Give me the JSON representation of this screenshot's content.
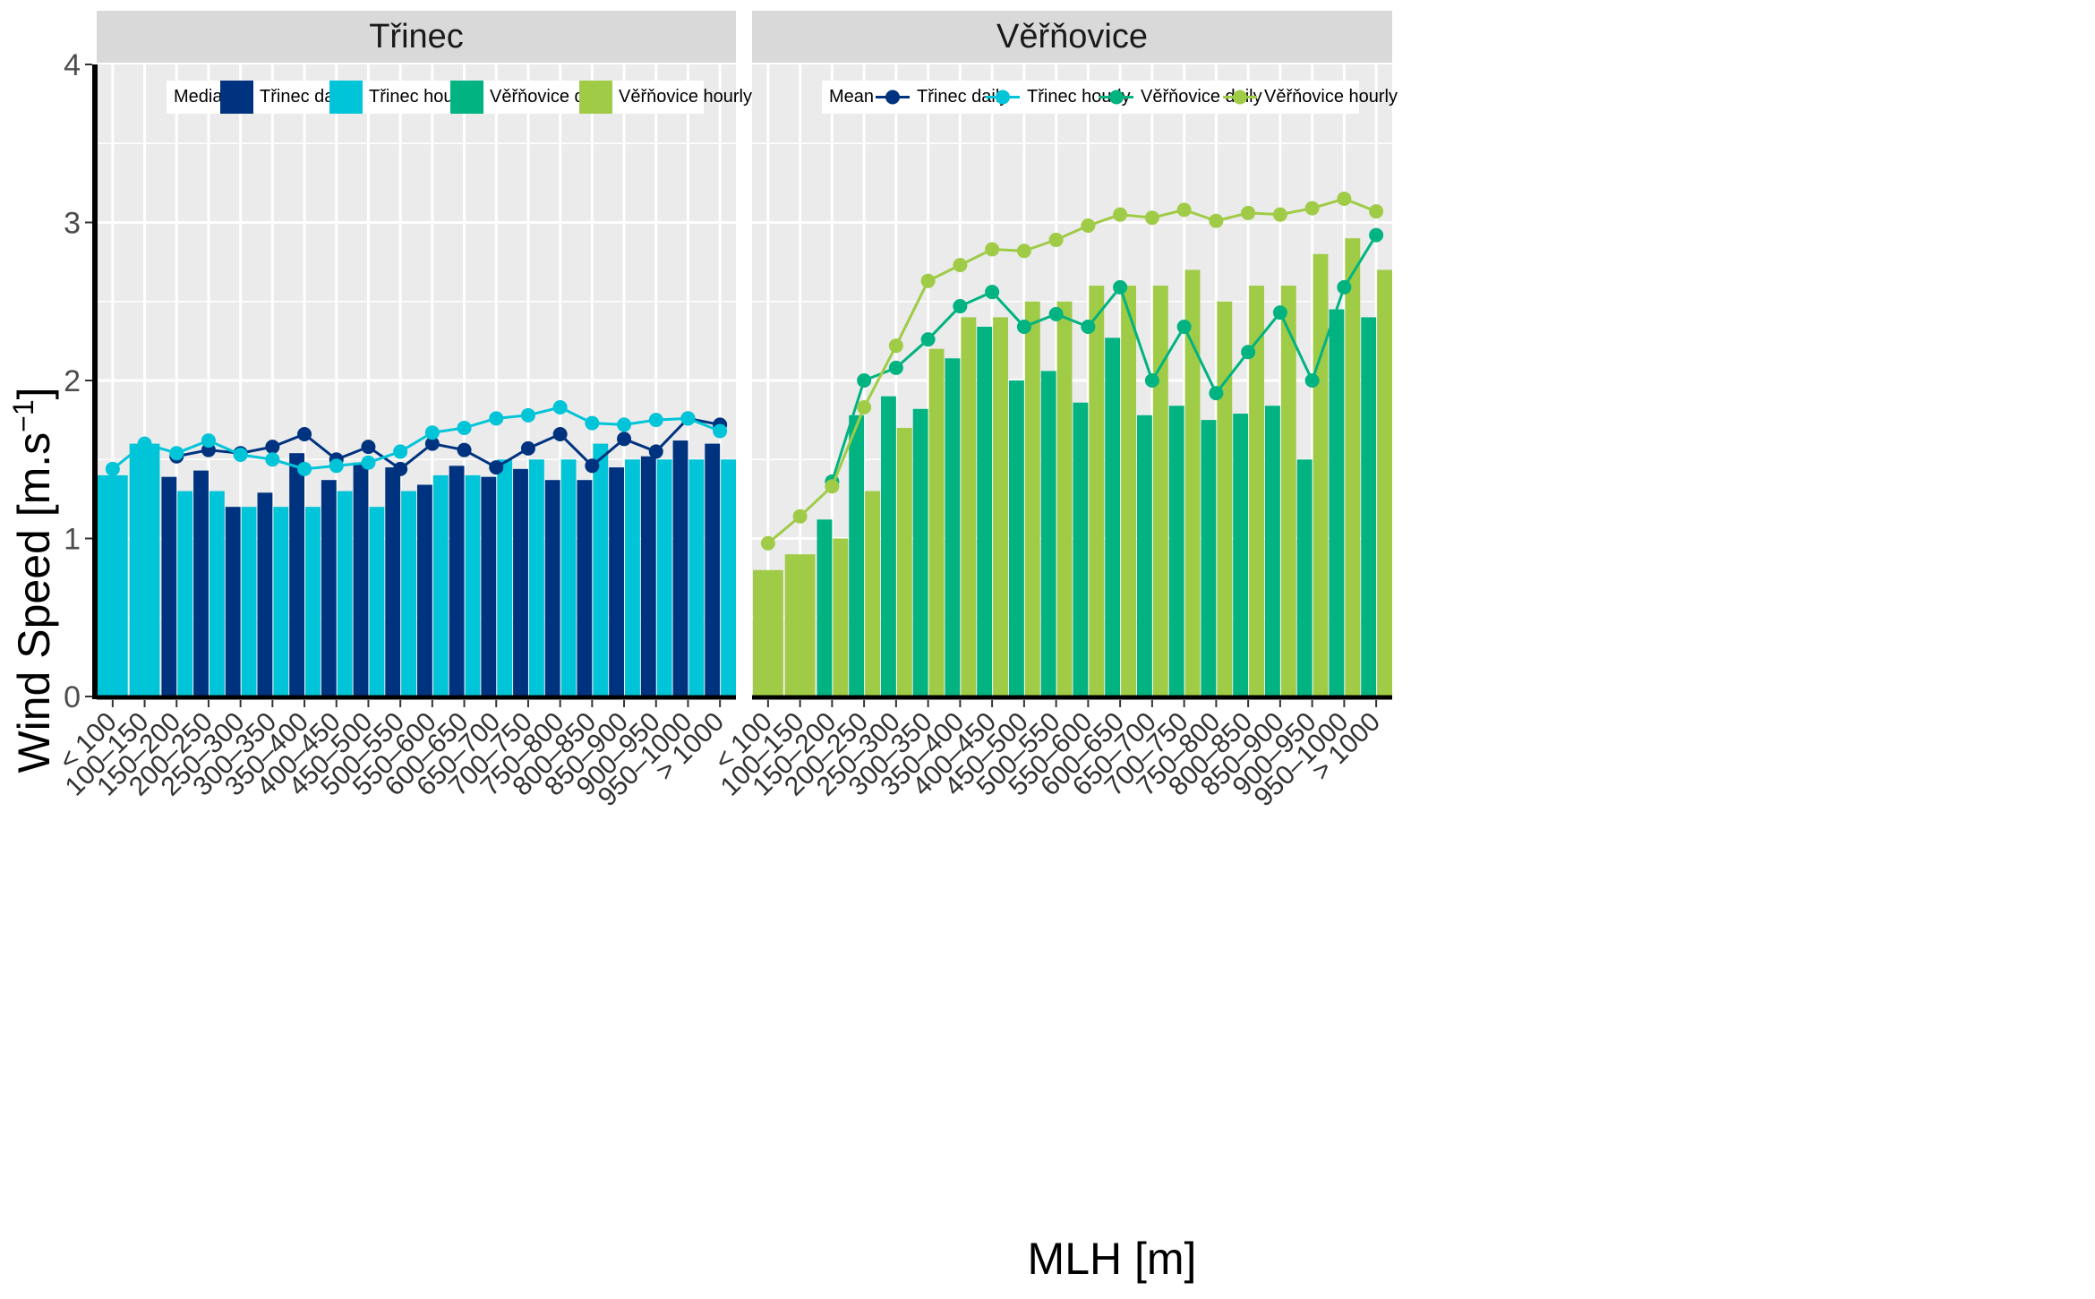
{
  "chart_data": {
    "type": "bar",
    "ylabel": "Wind Speed [m.s",
    "ylabel_sup": "−1",
    "ylabel_close": "]",
    "xlabel": "MLH [m]",
    "ylim": [
      0,
      4
    ],
    "yticks": [
      "0",
      "1",
      "2",
      "3",
      "4"
    ],
    "categories": [
      "< 100",
      "100–150",
      "150–200",
      "200–250",
      "250–300",
      "300–350",
      "350–400",
      "400–450",
      "450–500",
      "500–550",
      "550–600",
      "600–650",
      "650–700",
      "700–750",
      "750–800",
      "800–850",
      "850–900",
      "900–950",
      "950–1000",
      "> 1000"
    ],
    "colors": {
      "trinec_daily": "#00337f",
      "trinec_hourly": "#00c4d8",
      "verinovice_daily": "#00b380",
      "verinovice_hourly": "#9fcb46",
      "panel_bg": "#ebebeb",
      "strip_bg": "#d9d9d9"
    },
    "panels": [
      {
        "title": "Třinec",
        "legend_title": "Median",
        "legend_type": "bar",
        "legend": [
          "Třinec daily",
          "Třinec hourly",
          "Věřňovice daily",
          "Věřňovice hourly"
        ],
        "bars": [
          {
            "name": "Třinec daily",
            "color_key": "trinec_daily",
            "values": [
              null,
              null,
              1.39,
              1.43,
              1.2,
              1.29,
              1.54,
              1.37,
              1.48,
              1.45,
              1.34,
              1.46,
              1.39,
              1.44,
              1.37,
              1.37,
              1.45,
              1.52,
              1.62,
              1.6
            ]
          },
          {
            "name": "Třinec hourly",
            "color_key": "trinec_hourly",
            "values": [
              1.4,
              1.6,
              1.3,
              1.3,
              1.2,
              1.2,
              1.2,
              1.3,
              1.2,
              1.3,
              1.4,
              1.4,
              1.5,
              1.5,
              1.5,
              1.6,
              1.5,
              1.5,
              1.5,
              1.5
            ]
          }
        ],
        "lines": [
          {
            "name": "Třinec daily",
            "color_key": "trinec_daily",
            "values": [
              null,
              null,
              1.52,
              1.56,
              1.54,
              1.58,
              1.66,
              1.5,
              1.58,
              1.44,
              1.6,
              1.56,
              1.45,
              1.57,
              1.66,
              1.46,
              1.63,
              1.55,
              1.76,
              1.72
            ]
          },
          {
            "name": "Třinec hourly",
            "color_key": "trinec_hourly",
            "values": [
              1.44,
              1.6,
              1.54,
              1.62,
              1.53,
              1.5,
              1.44,
              1.46,
              1.48,
              1.55,
              1.67,
              1.7,
              1.76,
              1.78,
              1.83,
              1.73,
              1.72,
              1.75,
              1.76,
              1.68
            ]
          }
        ]
      },
      {
        "title": "Věřňovice",
        "legend_title": "Mean",
        "legend_type": "line",
        "legend": [
          "Třinec daily",
          "Třinec hourly",
          "Věřňovice daily",
          "Věřňovice hourly"
        ],
        "bars": [
          {
            "name": "Věřňovice daily",
            "color_key": "verinovice_daily",
            "values": [
              null,
              null,
              1.12,
              1.78,
              1.9,
              1.82,
              2.14,
              2.34,
              2.0,
              2.06,
              1.86,
              2.27,
              1.78,
              1.84,
              1.75,
              1.79,
              1.84,
              1.5,
              2.45,
              2.4
            ]
          },
          {
            "name": "Věřňovice hourly",
            "color_key": "verinovice_hourly",
            "values": [
              0.8,
              0.9,
              1.0,
              1.3,
              1.7,
              2.2,
              2.4,
              2.4,
              2.5,
              2.5,
              2.6,
              2.6,
              2.6,
              2.7,
              2.5,
              2.6,
              2.6,
              2.8,
              2.9,
              2.7
            ]
          }
        ],
        "lines": [
          {
            "name": "Věřňovice daily",
            "color_key": "verinovice_daily",
            "values": [
              null,
              null,
              1.36,
              2.0,
              2.08,
              2.26,
              2.47,
              2.56,
              2.34,
              2.42,
              2.34,
              2.59,
              2.0,
              2.34,
              1.92,
              2.18,
              2.43,
              2.0,
              2.59,
              2.92
            ]
          },
          {
            "name": "Věřňovice hourly",
            "color_key": "verinovice_hourly",
            "values": [
              0.97,
              1.14,
              1.33,
              1.83,
              2.22,
              2.63,
              2.73,
              2.83,
              2.82,
              2.89,
              2.98,
              3.05,
              3.03,
              3.08,
              3.01,
              3.06,
              3.05,
              3.09,
              3.15,
              3.07
            ]
          }
        ]
      }
    ]
  }
}
